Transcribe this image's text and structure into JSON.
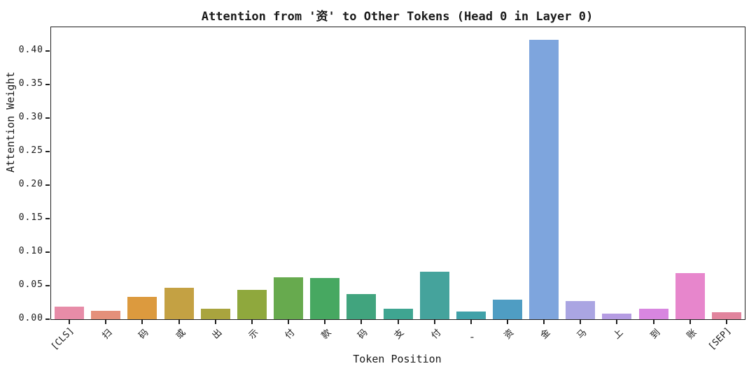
{
  "chart_data": {
    "type": "bar",
    "title": "Attention from '资' to Other Tokens (Head 0 in Layer 0)",
    "xlabel": "Token Position",
    "ylabel": "Attention Weight",
    "categories": [
      "[CLS]",
      "扫",
      "码",
      "或",
      "出",
      "示",
      "付",
      "款",
      "码",
      "支",
      "付",
      "、",
      "资",
      "金",
      "马",
      "上",
      "到",
      "账",
      "[SEP]"
    ],
    "values": [
      0.019,
      0.012,
      0.033,
      0.047,
      0.016,
      0.044,
      0.063,
      0.061,
      0.037,
      0.016,
      0.071,
      0.011,
      0.029,
      0.417,
      0.027,
      0.008,
      0.016,
      0.069,
      0.01
    ],
    "bar_colors": [
      "#e78ca8",
      "#e4907a",
      "#dc9a3e",
      "#c4a143",
      "#a9a43e",
      "#8fa83d",
      "#67aa4e",
      "#47a861",
      "#41a47e",
      "#3fa591",
      "#45a39c",
      "#40a1a8",
      "#4f9dc3",
      "#7ea5dd",
      "#aaa5e2",
      "#b59ce2",
      "#d886e0",
      "#e786cc",
      "#e1849d"
    ],
    "yticks": [
      "0.00",
      "0.05",
      "0.10",
      "0.15",
      "0.20",
      "0.25",
      "0.30",
      "0.35",
      "0.40"
    ],
    "ylim": [
      0,
      0.4354
    ],
    "grid": false,
    "legend": null,
    "axis_color": "#1f1f1f"
  }
}
